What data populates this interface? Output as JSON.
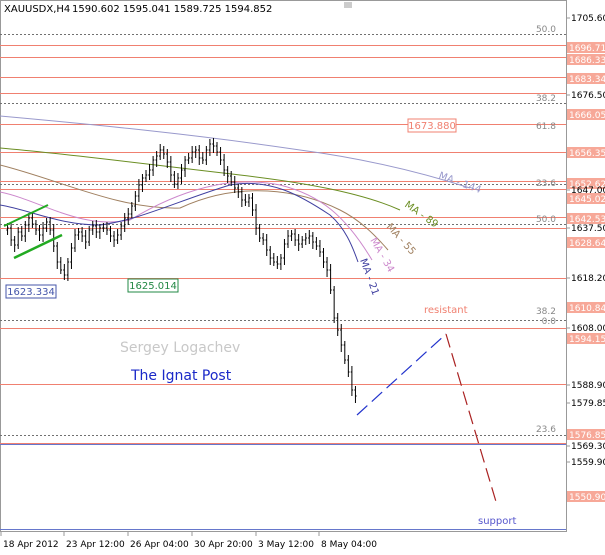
{
  "header": {
    "symbol": "XAUUSDX,H4",
    "ohlc": "1590.602 1595.041 1589.725 1594.852"
  },
  "price_axis": {
    "ticks": [
      "1705.60",
      "1696.71",
      "1686.33",
      "1683.34",
      "1676.50",
      "1666.05",
      "1656.35",
      "1652.62",
      "1647.00",
      "1645.02",
      "1642.53",
      "1637.50",
      "1628.64",
      "1618.20",
      "1610.84",
      "1608.00",
      "1594.15",
      "1588.90",
      "1579.85",
      "1576.85",
      "1569.30",
      "1559.90",
      "1550.90"
    ],
    "highlighted": [
      "1696.71",
      "1686.33",
      "1683.34",
      "1666.05",
      "1656.35",
      "1652.62",
      "1645.02",
      "1642.53",
      "1628.64",
      "1610.84",
      "1594.15",
      "1576.85",
      "1550.90"
    ]
  },
  "time_axis": {
    "labels": [
      "18 Apr 2012",
      "23 Apr 12:00",
      "26 Apr 04:00",
      "30 Apr 20:00",
      "3 May 12:00",
      "8 May 04:00"
    ]
  },
  "levels": {
    "fib_labels": [
      "50.0",
      "38.2",
      "61.8",
      "23.6",
      "50.0",
      "38.2",
      "0.0",
      "23.6"
    ],
    "price_tags": [
      "1673.880",
      "1623.334",
      "1625.014"
    ]
  },
  "ma_labels": [
    "MA - 144",
    "MA - 89",
    "MA - 55",
    "MA - 34",
    "MA - 21"
  ],
  "annotations": {
    "watermark": "Sergey Logachev",
    "brand": "The Ignat Post",
    "resistant": "resistant",
    "support": "support"
  },
  "colors": {
    "level_line": "#f08070",
    "fib_line": "#707070",
    "ma144": "#8888cc",
    "ma89": "#6b8e23",
    "ma55": "#a08060",
    "ma34": "#cc88cc",
    "ma21": "#4040a0",
    "trend_green": "#22aa22",
    "forecast_up": "#2233cc",
    "forecast_down": "#aa2222",
    "brand": "#1a28c8"
  }
}
